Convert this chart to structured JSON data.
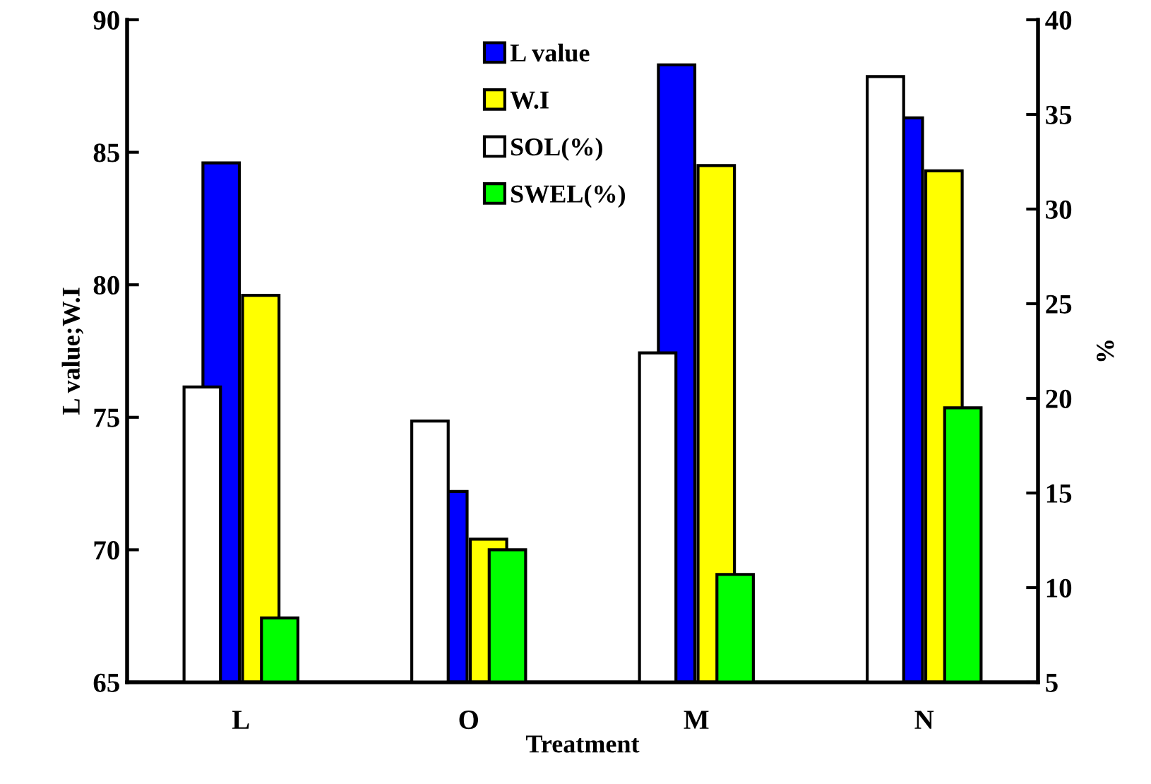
{
  "chart_data": {
    "type": "bar",
    "categories": [
      "L",
      "O",
      "M",
      "N"
    ],
    "xlabel": "Treatment",
    "ylabel": "L value;W.I",
    "y2label": "%",
    "series": [
      {
        "name": "L value",
        "color": "#0000ff",
        "values": [
          84.6,
          72.2,
          88.3,
          86.3
        ]
      },
      {
        "name": "W.I",
        "color": "#ffff00",
        "values": [
          79.6,
          70.4,
          84.5,
          84.3
        ]
      },
      {
        "name": "SOL(%)",
        "color": "#ffffff",
        "axis": "y2",
        "values": [
          20.6,
          18.8,
          22.4,
          37.0
        ]
      },
      {
        "name": "SWEL(%)",
        "color": "#00ff00",
        "axis": "y2",
        "values": [
          8.4,
          12.0,
          10.7,
          19.5
        ]
      }
    ],
    "ylim": [
      65,
      90
    ],
    "yticks": [
      65,
      70,
      75,
      80,
      85,
      90
    ],
    "y2lim": [
      5,
      40
    ],
    "y2ticks": [
      5,
      10,
      15,
      20,
      25,
      30,
      35,
      40
    ],
    "grid": false,
    "legend": "top"
  }
}
